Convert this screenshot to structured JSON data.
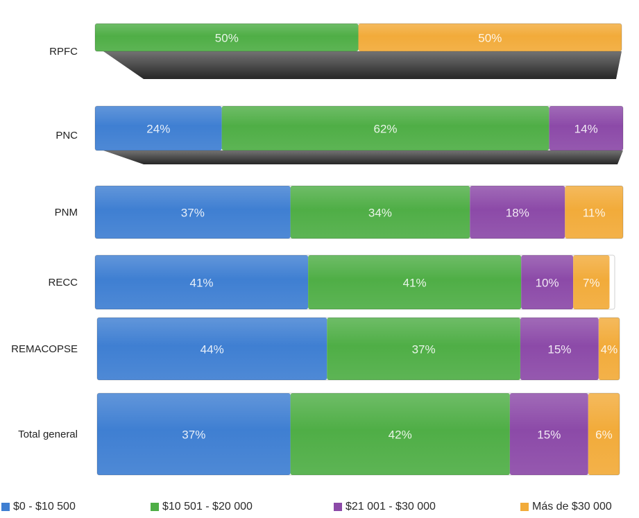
{
  "chart_data": {
    "type": "bar",
    "orientation": "horizontal",
    "stacked": true,
    "percent": true,
    "title": "",
    "xlabel": "",
    "ylabel": "",
    "categories": [
      "RPFC",
      "PNC",
      "PNM",
      "RECC",
      "REMACOPSE",
      "Total general"
    ],
    "series": [
      {
        "name": "$0 - $10 500",
        "color": "#3f7fd2",
        "values": [
          0,
          24,
          37,
          41,
          44,
          37
        ]
      },
      {
        "name": "$10 501 - $20 000",
        "color": "#4fae46",
        "values": [
          50,
          62,
          34,
          41,
          37,
          42
        ]
      },
      {
        "name": "$21 001 - $30 000",
        "color": "#8c4aa8",
        "values": [
          0,
          14,
          18,
          10,
          15,
          15
        ]
      },
      {
        "name": "Más de $30 000",
        "color": "#f2ab3a",
        "values": [
          50,
          0,
          11,
          7,
          4,
          6
        ]
      }
    ],
    "data_labels": [
      [
        "",
        "50%",
        "",
        "50%"
      ],
      [
        "24%",
        "62%",
        "14%",
        ""
      ],
      [
        "37%",
        "34%",
        "18%",
        "11%"
      ],
      [
        "41%",
        "41%",
        "10%",
        "7%"
      ],
      [
        "44%",
        "37%",
        "15%",
        "4%"
      ],
      [
        "37%",
        "42%",
        "15%",
        "6%"
      ]
    ],
    "xlim": [
      0,
      100
    ],
    "grid": false,
    "legend": "bottom"
  }
}
